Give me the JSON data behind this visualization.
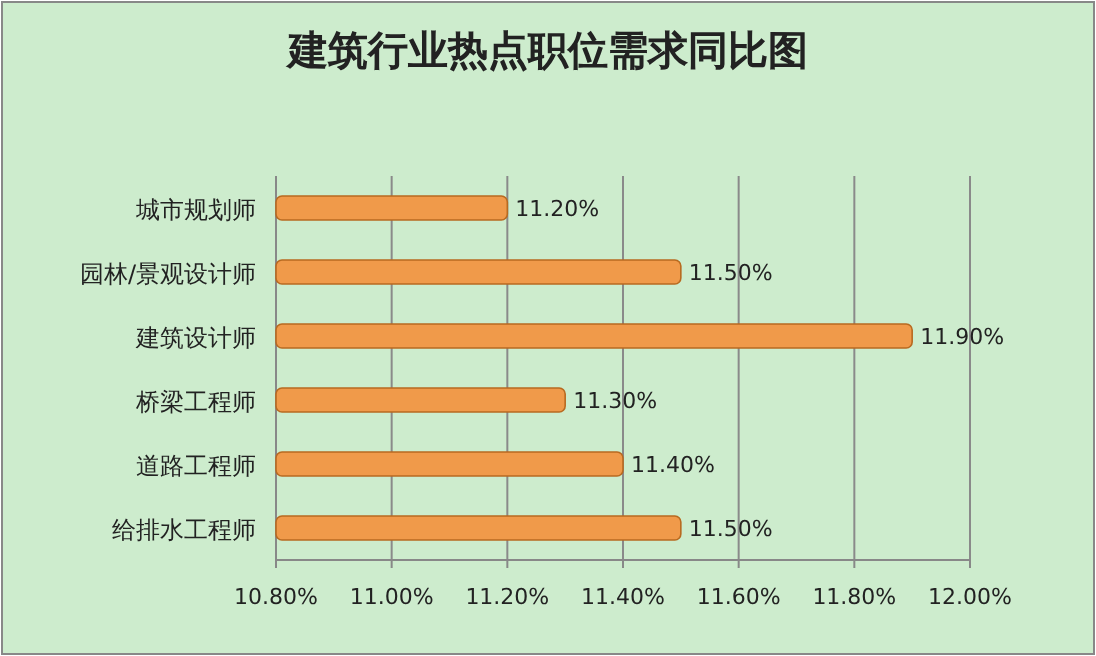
{
  "chart_data": {
    "type": "bar",
    "orientation": "horizontal",
    "title": "建筑行业热点职位需求同比图",
    "categories": [
      "城市规划师",
      "园林/景观设计师",
      "建筑设计师",
      "桥梁工程师",
      "道路工程师",
      "给排水工程师"
    ],
    "values": [
      11.2,
      11.5,
      11.9,
      11.3,
      11.4,
      11.5
    ],
    "value_labels": [
      "11.20%",
      "11.50%",
      "11.90%",
      "11.30%",
      "11.40%",
      "11.50%"
    ],
    "color": "#f09a4a",
    "xlim": [
      10.8,
      12.0
    ],
    "xticks": [
      {
        "value": 10.8,
        "label": "10.80%"
      },
      {
        "value": 11.0,
        "label": "11.00%"
      },
      {
        "value": 11.2,
        "label": "11.20%"
      },
      {
        "value": 11.4,
        "label": "11.40%"
      },
      {
        "value": 11.6,
        "label": "11.60%"
      },
      {
        "value": 11.8,
        "label": "11.80%"
      },
      {
        "value": 12.0,
        "label": "12.00%"
      }
    ],
    "grid": "x"
  }
}
